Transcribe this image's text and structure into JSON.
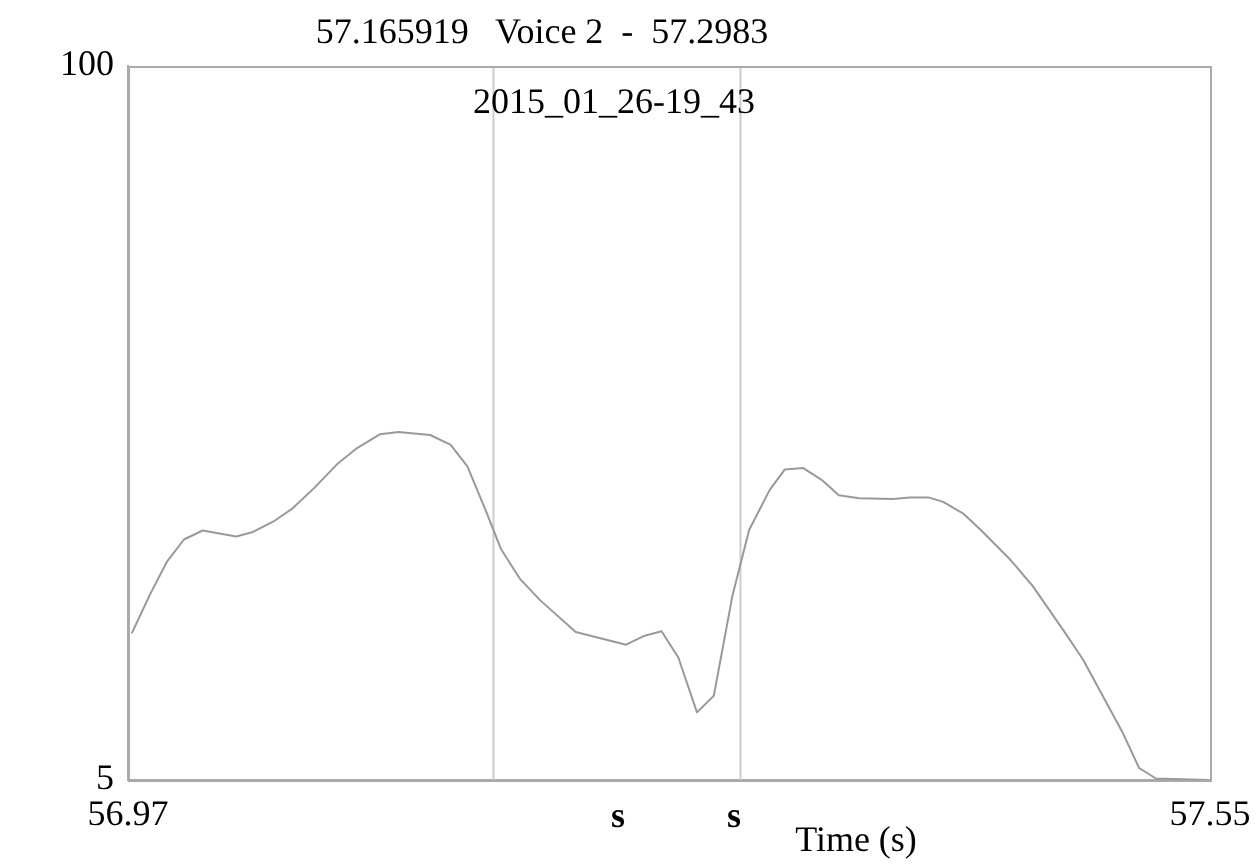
{
  "chart_data": {
    "type": "line",
    "title": "57.165919   Voice 2  -  57.2983",
    "subtitle": "2015_01_26-19_43",
    "xlabel": "Time (s)",
    "x": [
      56.972,
      56.982,
      56.991,
      57.0,
      57.01,
      57.028,
      57.037,
      57.048,
      57.058,
      57.07,
      57.082,
      57.093,
      57.105,
      57.115,
      57.132,
      57.143,
      57.152,
      57.162,
      57.17,
      57.18,
      57.191,
      57.21,
      57.237,
      57.247,
      57.256,
      57.265,
      57.275,
      57.284,
      57.294,
      57.303,
      57.314,
      57.322,
      57.332,
      57.342,
      57.351,
      57.362,
      57.38,
      57.389,
      57.399,
      57.407,
      57.418,
      57.427,
      57.443,
      57.455,
      57.472,
      57.482,
      57.503,
      57.512,
      57.521,
      57.549
    ],
    "series": [
      {
        "color": "#999999",
        "values": [
          24.5,
          29.8,
          34.1,
          37.0,
          38.2,
          37.4,
          38.0,
          39.4,
          41.1,
          43.9,
          47.0,
          49.2,
          51.0,
          51.3,
          50.9,
          49.6,
          46.7,
          40.7,
          35.7,
          31.8,
          28.9,
          24.7,
          23.0,
          24.2,
          24.8,
          21.3,
          14.0,
          16.2,
          29.5,
          38.3,
          43.6,
          46.3,
          46.5,
          44.9,
          42.9,
          42.5,
          42.4,
          42.6,
          42.6,
          42.0,
          40.4,
          38.3,
          34.3,
          30.8,
          24.7,
          21.0,
          11.4,
          6.6,
          5.2,
          5.0
        ]
      }
    ],
    "xlim": [
      56.97,
      57.55
    ],
    "xticks": [
      56.97,
      57.55
    ],
    "ylim": [
      5,
      100
    ],
    "yticks": [
      5,
      100
    ],
    "ref_lines": [
      {
        "axis": "x",
        "value": 57.165919,
        "color": "#cccccc"
      },
      {
        "axis": "x",
        "value": 57.2983,
        "color": "#cccccc"
      }
    ],
    "annotations": [
      "s",
      "s"
    ],
    "grid": false,
    "legend": false,
    "marker": "none",
    "line_style": "solid"
  }
}
